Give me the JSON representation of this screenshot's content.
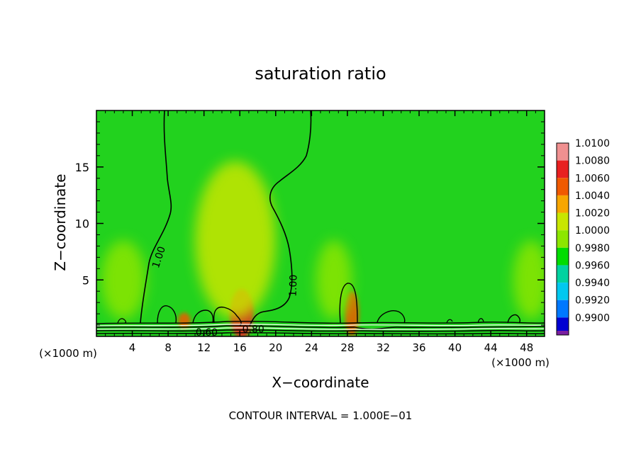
{
  "chart_data": {
    "type": "heatmap",
    "title": "saturation ratio",
    "xlabel": "X−coordinate",
    "ylabel": "Z−coordinate",
    "x_unit_left": "(×1000 m)",
    "x_unit_right": "(×1000 m)",
    "footer": "CONTOUR INTERVAL = 1.000E−01",
    "xlim": [
      0,
      50
    ],
    "ylim": [
      0,
      20
    ],
    "x_ticks": [
      4,
      8,
      12,
      16,
      20,
      24,
      28,
      32,
      36,
      40,
      44,
      48
    ],
    "y_ticks": [
      5,
      10,
      15
    ],
    "grid": false,
    "legend": "right",
    "colorbar": {
      "levels": [
        {
          "label": "1.0100",
          "color": "#f09090"
        },
        {
          "label": "1.0080",
          "color": "#e82020"
        },
        {
          "label": "1.0060",
          "color": "#f05a00"
        },
        {
          "label": "1.0040",
          "color": "#f7a600"
        },
        {
          "label": "1.0020",
          "color": "#c8e600"
        },
        {
          "label": "1.0000",
          "color": "#8ce600"
        },
        {
          "label": "0.9980",
          "color": "#00dc00"
        },
        {
          "label": "0.9960",
          "color": "#00d2a0"
        },
        {
          "label": "0.9940",
          "color": "#00c8f0"
        },
        {
          "label": "0.9920",
          "color": "#0078ff"
        },
        {
          "label": "0.9900",
          "color": "#0000d2"
        }
      ],
      "bottom_color": "#7a1ea0"
    },
    "background_color": "#22d21e",
    "contour_labels": [
      {
        "text": "1.00",
        "x": 7.0,
        "z": 7.0,
        "angle": -72
      },
      {
        "text": "1.00",
        "x": 22.0,
        "z": 4.5,
        "angle": -88
      },
      {
        "text": "0.60",
        "x": 12.3,
        "z": 0.3,
        "angle": 0
      },
      {
        "text": "0.80",
        "x": 17.5,
        "z": 0.6,
        "angle": 0
      }
    ],
    "anomalies": [
      {
        "x": 16.2,
        "z": 2.0,
        "rx": 1.3,
        "rz": 2.2,
        "value": 1.008
      },
      {
        "x": 15.5,
        "z": 8.5,
        "rx": 4.5,
        "rz": 7.0,
        "value": 1.002
      },
      {
        "x": 28.5,
        "z": 2.0,
        "rx": 0.8,
        "rz": 2.0,
        "value": 1.006
      },
      {
        "x": 9.8,
        "z": 1.4,
        "rx": 0.7,
        "rz": 0.7,
        "value": 1.006
      },
      {
        "x": 3.0,
        "z": 5.0,
        "rx": 2.5,
        "rz": 3.5,
        "value": 0.999
      },
      {
        "x": 26.5,
        "z": 5.0,
        "rx": 2.0,
        "rz": 3.5,
        "value": 0.999
      },
      {
        "x": 48.5,
        "z": 5.0,
        "rx": 2.0,
        "rz": 3.5,
        "value": 0.999
      }
    ]
  }
}
